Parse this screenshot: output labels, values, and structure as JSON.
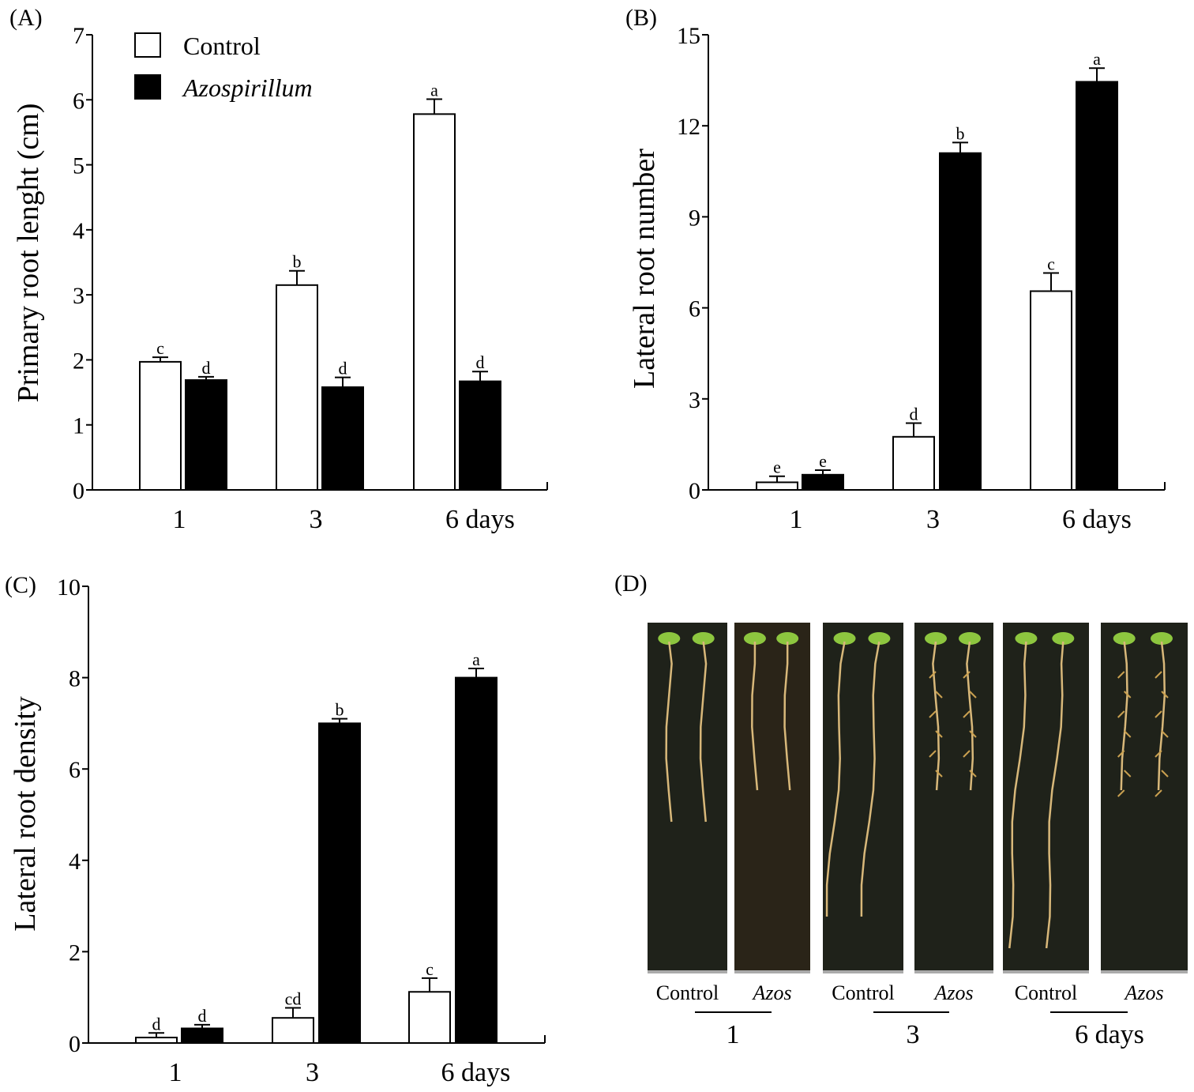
{
  "chart_data": [
    {
      "panel": "(A)",
      "type": "bar",
      "ylabel": "Primary root lenght (cm)",
      "ylim": [
        0,
        7
      ],
      "yticks": [
        "0",
        "1",
        "2",
        "3",
        "4",
        "5",
        "6",
        "7"
      ],
      "categories": [
        "1",
        "3",
        "6 days"
      ],
      "legend": {
        "position": "top-left",
        "entries": [
          "Control",
          "Azospirillum"
        ]
      },
      "series": [
        {
          "name": "Control",
          "color": "#ffffff",
          "values": [
            1.97,
            3.15,
            5.78
          ],
          "errors": [
            0.07,
            0.22,
            0.23
          ],
          "letters": [
            "c",
            "b",
            "a"
          ]
        },
        {
          "name": "Azospirillum",
          "color": "#000000",
          "values": [
            1.69,
            1.58,
            1.67
          ],
          "errors": [
            0.05,
            0.15,
            0.15
          ],
          "letters": [
            "d",
            "d",
            "d"
          ]
        }
      ]
    },
    {
      "panel": "(B)",
      "type": "bar",
      "ylabel": "Lateral root number",
      "ylim": [
        0,
        15
      ],
      "yticks": [
        "0",
        "3",
        "6",
        "9",
        "12",
        "15"
      ],
      "categories": [
        "1",
        "3",
        "6 days"
      ],
      "series": [
        {
          "name": "Control",
          "color": "#ffffff",
          "values": [
            0.25,
            1.75,
            6.55
          ],
          "errors": [
            0.2,
            0.45,
            0.6
          ],
          "letters": [
            "e",
            "d",
            "c"
          ]
        },
        {
          "name": "Azospirillum",
          "color": "#000000",
          "values": [
            0.5,
            11.1,
            13.45
          ],
          "errors": [
            0.15,
            0.35,
            0.45
          ],
          "letters": [
            "e",
            "b",
            "a"
          ]
        }
      ]
    },
    {
      "panel": "(C)",
      "type": "bar",
      "ylabel": "Lateral root density",
      "ylim": [
        0,
        10
      ],
      "yticks": [
        "0",
        "2",
        "4",
        "6",
        "8",
        "10"
      ],
      "categories": [
        "1",
        "3",
        "6 days"
      ],
      "series": [
        {
          "name": "Control",
          "color": "#ffffff",
          "values": [
            0.12,
            0.55,
            1.12
          ],
          "errors": [
            0.1,
            0.22,
            0.3
          ],
          "letters": [
            "d",
            "cd",
            "c"
          ]
        },
        {
          "name": "Azospirillum",
          "color": "#000000",
          "values": [
            0.32,
            7.0,
            8.0
          ],
          "errors": [
            0.08,
            0.1,
            0.2
          ],
          "letters": [
            "d",
            "b",
            "a"
          ]
        }
      ]
    }
  ],
  "photo_panel": {
    "panel": "(D)",
    "treatment_labels": [
      "Control",
      "Azos",
      "Control",
      "Azos",
      "Control",
      "Azos"
    ],
    "day_labels": [
      "1",
      "3",
      "6 days"
    ]
  }
}
